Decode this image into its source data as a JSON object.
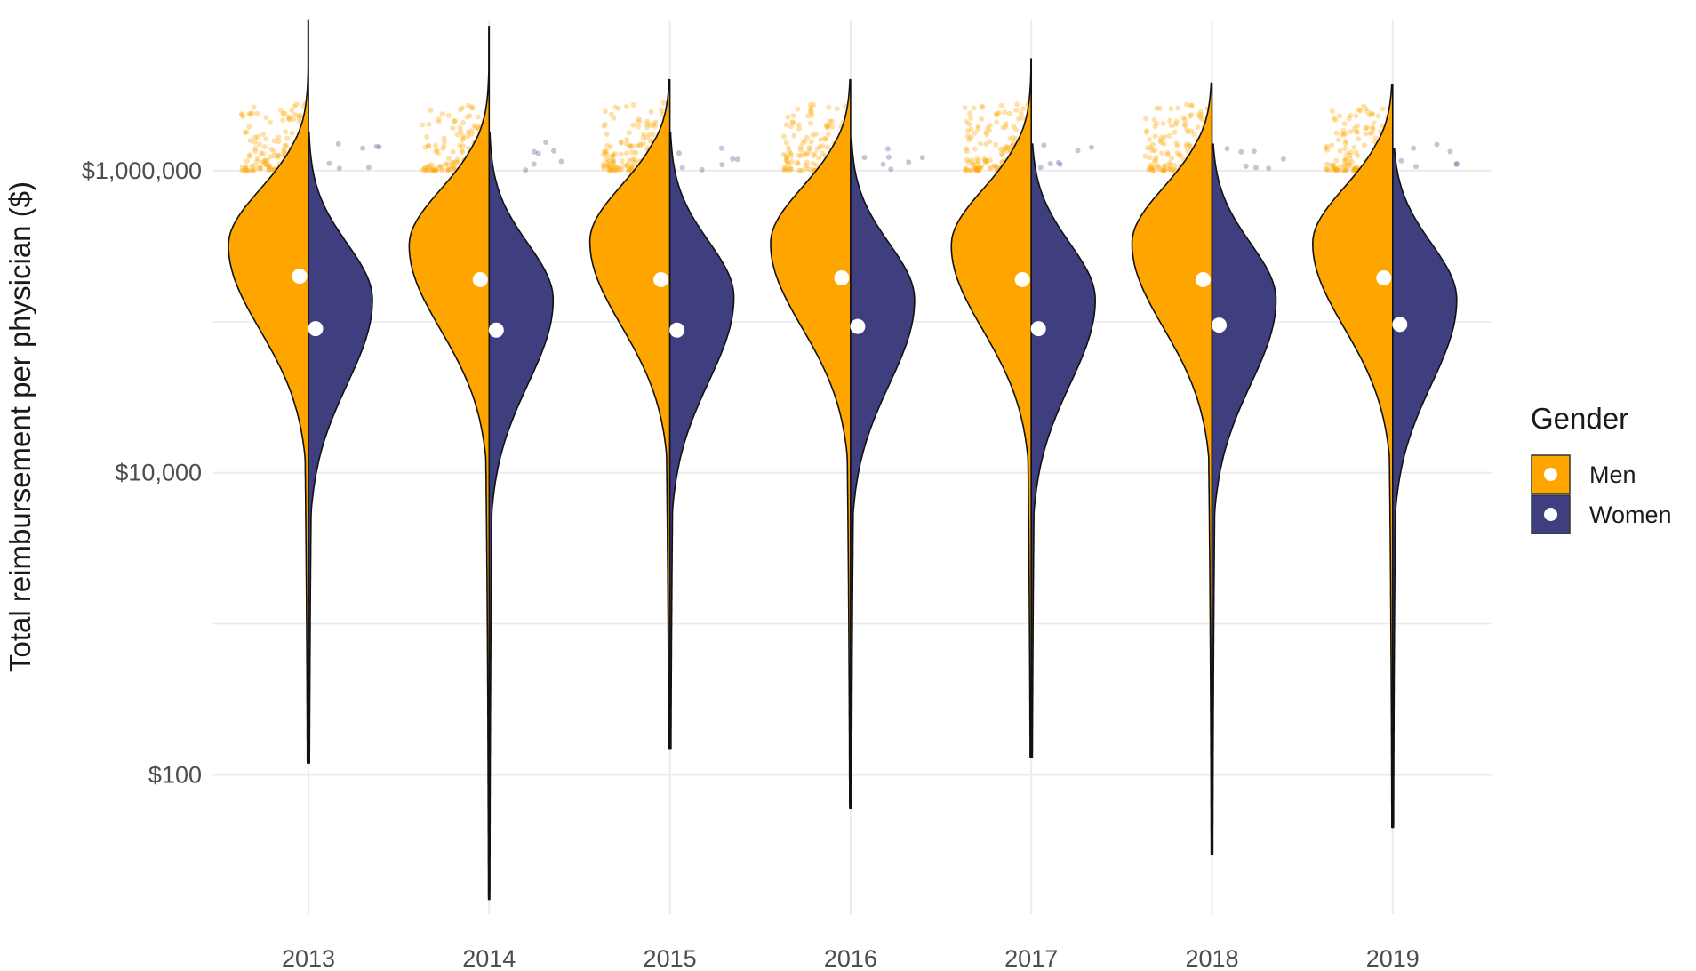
{
  "chart_data": {
    "type": "violin",
    "title": "",
    "xlabel": "",
    "ylabel": "Total reimbursement per physician ($)",
    "y_scale": "log10",
    "ylim": [
      12,
      10000000
    ],
    "y_ticks": [
      {
        "value": 100,
        "label": "$100"
      },
      {
        "value": 10000,
        "label": "$10,000"
      },
      {
        "value": 1000000,
        "label": "$1,000,000"
      }
    ],
    "y_minor_gridlines": [
      1000,
      100000
    ],
    "grid": true,
    "categories": [
      "2013",
      "2014",
      "2015",
      "2016",
      "2017",
      "2018",
      "2019"
    ],
    "legend": {
      "title": "Gender",
      "position": "right",
      "items": [
        {
          "label": "Men",
          "color": "#FFA500"
        },
        {
          "label": "Women",
          "color": "#3F3F7F"
        }
      ]
    },
    "series": [
      {
        "name": "Men",
        "color": "#FFA500",
        "side": "left",
        "medians": [
          200000,
          190000,
          190000,
          195000,
          190000,
          190000,
          195000
        ],
        "modes": [
          320000,
          320000,
          340000,
          330000,
          320000,
          330000,
          330000
        ],
        "max": [
          10000000,
          9000000,
          4000000,
          4000000,
          5500000,
          3800000,
          3700000
        ],
        "min": [
          120,
          15,
          150,
          60,
          130,
          30,
          45
        ]
      },
      {
        "name": "Women",
        "color": "#3F3F7F",
        "side": "right",
        "medians": [
          90000,
          88000,
          88000,
          93000,
          90000,
          95000,
          96000
        ],
        "modes": [
          140000,
          140000,
          145000,
          140000,
          140000,
          140000,
          140000
        ],
        "max": [
          1800000,
          1800000,
          1800000,
          1600000,
          1500000,
          1500000,
          1400000
        ],
        "min": [
          120,
          15,
          150,
          60,
          130,
          30,
          45
        ]
      }
    ]
  }
}
